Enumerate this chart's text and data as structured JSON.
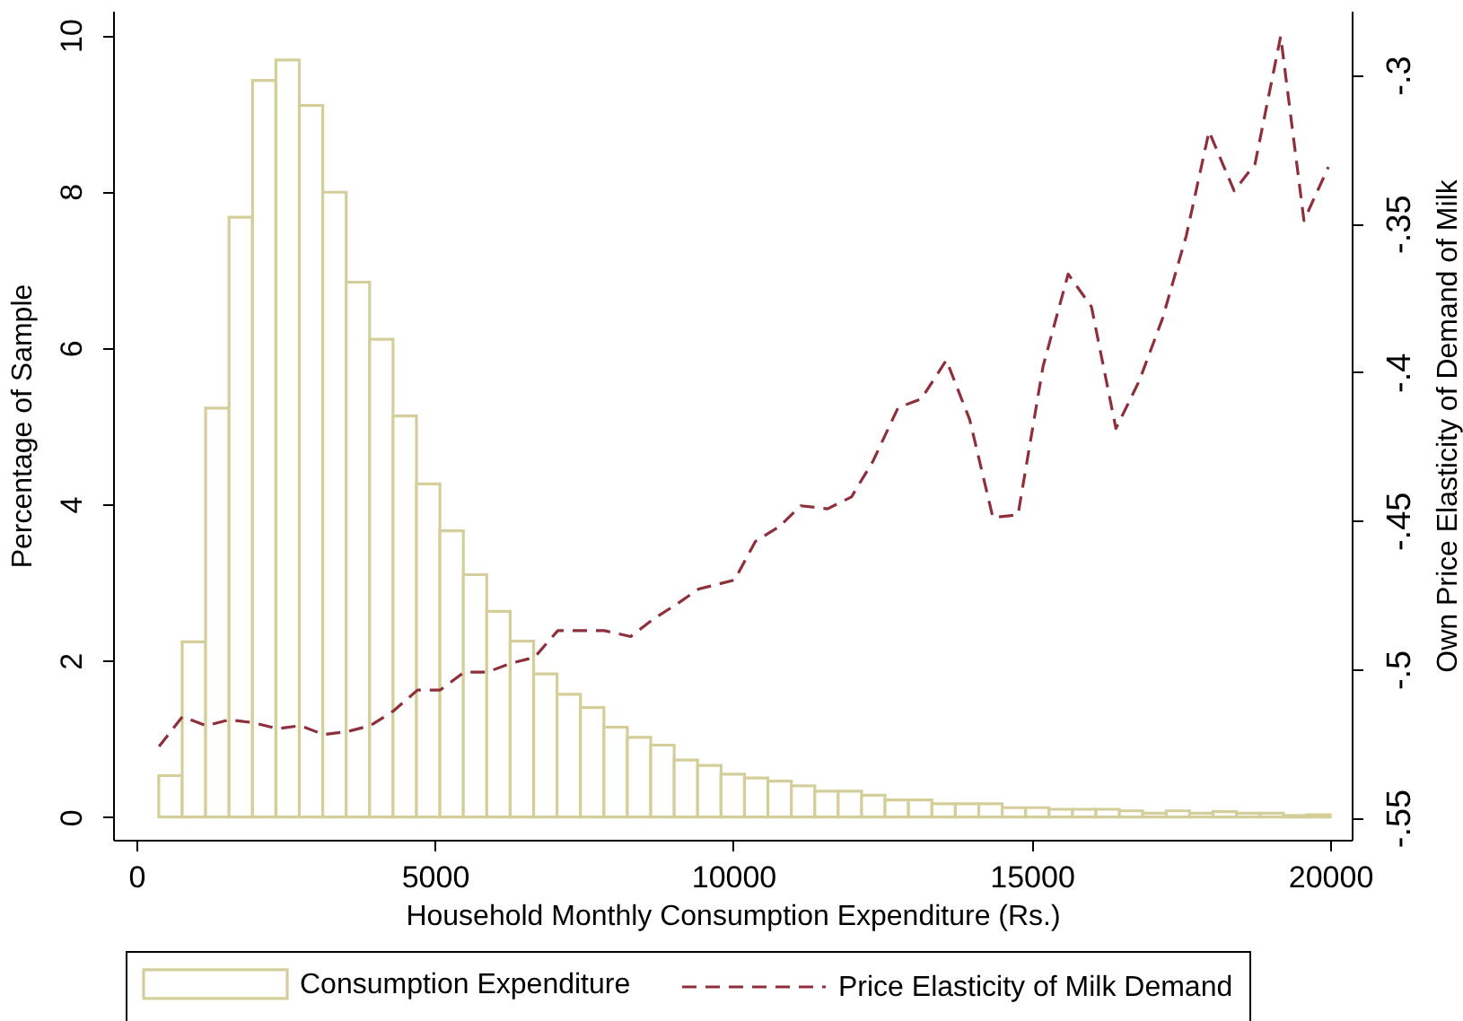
{
  "chart_data": {
    "type": "histogram",
    "xlabel": "Household Monthly Consumption Expenditure (Rs.)",
    "ylabel": "Percentage of Sample",
    "y2label": "Own Price Elasticity of Demand of Milk",
    "bins": [
      375,
      767.5,
      1160,
      1552.5,
      1945,
      2337.5,
      2730,
      3122.5,
      3515,
      3907.5,
      4300,
      4692.5,
      5085,
      5477.5,
      5870,
      6262.5,
      6655,
      7047.5,
      7440,
      7832.5,
      8225,
      8617.5,
      9010,
      9402.5,
      9795,
      10187.5,
      10580,
      10972.5,
      11365,
      11757.5,
      12150,
      12542.5,
      12935,
      13327.5,
      13720,
      14112.5,
      14505,
      14897.5,
      15290,
      15682.5,
      16075,
      16467.5,
      16860,
      17252.5,
      17645,
      18037.5,
      18430,
      18822.5,
      19215,
      19607.5,
      20000
    ],
    "series": [
      {
        "name": "Consumption Expenditure",
        "color": "#d4cf9a",
        "values": [
          0.53,
          2.24,
          5.23,
          7.67,
          9.42,
          9.68,
          9.1,
          7.99,
          6.84,
          6.11,
          5.13,
          4.26,
          3.66,
          3.1,
          2.63,
          2.25,
          1.83,
          1.57,
          1.4,
          1.15,
          1.02,
          0.92,
          0.73,
          0.66,
          0.55,
          0.5,
          0.46,
          0.4,
          0.33,
          0.33,
          0.28,
          0.22,
          0.22,
          0.17,
          0.17,
          0.17,
          0.12,
          0.12,
          0.1,
          0.1,
          0.1,
          0.08,
          0.05,
          0.08,
          0.05,
          0.07,
          0.05,
          0.05,
          0.02,
          0.03
        ]
      },
      {
        "name": "Price Elasticity of Milk Demand",
        "type": "line",
        "axis": "y2",
        "color": "#8f2f3c",
        "line_style": "dashed",
        "x": [
          380,
          770,
          1170,
          1560,
          1960,
          2360,
          2750,
          3140,
          3530,
          3920,
          4310,
          4710,
          5090,
          5490,
          5880,
          6270,
          6670,
          7060,
          7450,
          7840,
          8280,
          8670,
          9060,
          9420,
          10020,
          10370,
          10770,
          11130,
          11580,
          11980,
          12340,
          12760,
          13150,
          13570,
          13960,
          14350,
          14770,
          15190,
          15610,
          16000,
          16410,
          16800,
          17190,
          17590,
          17970,
          18390,
          18740,
          19170,
          19560,
          19970
        ],
        "values": [
          -0.526,
          -0.516,
          -0.519,
          -0.517,
          -0.518,
          -0.52,
          -0.519,
          -0.522,
          -0.521,
          -0.519,
          -0.514,
          -0.507,
          -0.507,
          -0.501,
          -0.501,
          -0.498,
          -0.496,
          -0.487,
          -0.487,
          -0.487,
          -0.489,
          -0.483,
          -0.478,
          -0.473,
          -0.47,
          -0.457,
          -0.452,
          -0.445,
          -0.446,
          -0.442,
          -0.43,
          -0.412,
          -0.409,
          -0.396,
          -0.416,
          -0.449,
          -0.448,
          -0.398,
          -0.367,
          -0.378,
          -0.419,
          -0.403,
          -0.382,
          -0.354,
          -0.319,
          -0.339,
          -0.33,
          -0.287,
          -0.349,
          -0.331
        ]
      }
    ],
    "xlim": [
      -390,
      20360
    ],
    "xticks": [
      0,
      5000,
      10000,
      15000,
      20000
    ],
    "ylim": [
      -0.29,
      10.31
    ],
    "yticks": [
      0,
      2,
      4,
      6,
      8,
      10
    ],
    "y2lim": [
      -0.5574,
      -0.2784
    ],
    "y2ticks": [
      {
        "value": -0.55,
        "label": "-.55"
      },
      {
        "value": -0.5,
        "label": "-.5"
      },
      {
        "value": -0.45,
        "label": "-.45"
      },
      {
        "value": -0.4,
        "label": "-.4"
      },
      {
        "value": -0.35,
        "label": "-.35"
      },
      {
        "value": -0.3,
        "label": "-.3"
      }
    ],
    "legend": "bottom"
  }
}
